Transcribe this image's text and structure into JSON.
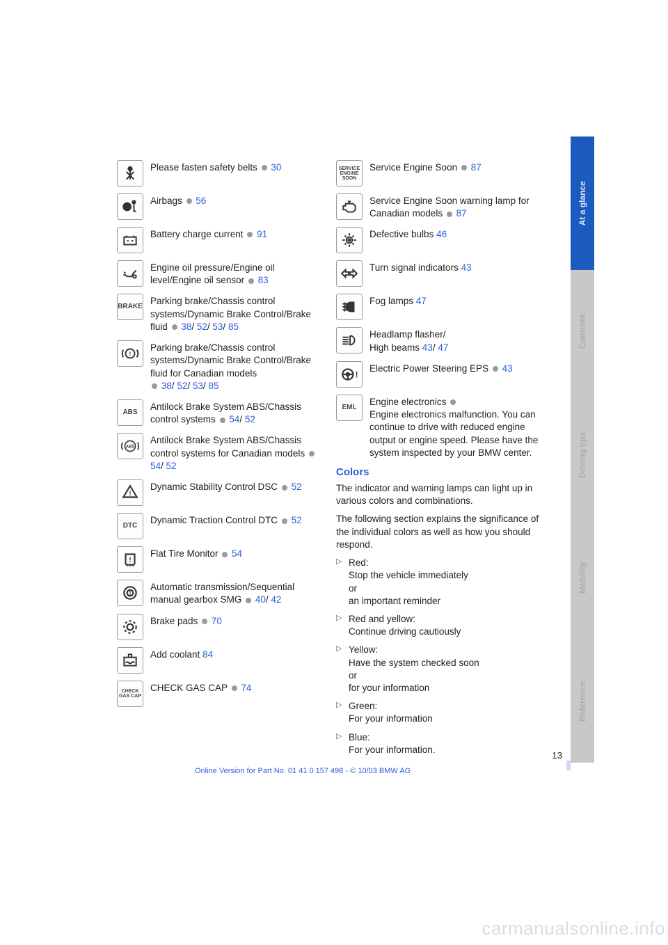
{
  "left_column": [
    {
      "icon": "seatbelt",
      "text": "Please fasten safety belts",
      "dot": true,
      "links": [
        "30"
      ]
    },
    {
      "icon": "airbag",
      "text": "Airbags",
      "dot": true,
      "links": [
        "56"
      ]
    },
    {
      "icon": "battery",
      "text": "Battery charge current",
      "dot": true,
      "links": [
        "91"
      ]
    },
    {
      "icon": "oil",
      "text": "Engine oil pressure/Engine oil level/Engine oil sensor",
      "dot": true,
      "links": [
        "83"
      ]
    },
    {
      "icon": "BRAKE",
      "icon_text": true,
      "text": "Parking brake/Chassis control systems/Dynamic Brake Control/Brake fluid",
      "dot": true,
      "links": [
        "38",
        "52",
        "53",
        "85"
      ]
    },
    {
      "icon": "brake-cad",
      "text": "Parking brake/Chassis control systems/Dynamic Brake Control/Brake fluid for Canadian models",
      "dot": true,
      "dot_before_links": true,
      "links": [
        "38",
        "52",
        "53",
        "85"
      ]
    },
    {
      "icon": "ABS",
      "icon_text": true,
      "text": "Antilock Brake System ABS/Chassis control systems",
      "dot": true,
      "links": [
        "54",
        "52"
      ]
    },
    {
      "icon": "abs-cad",
      "text": "Antilock Brake System ABS/Chassis control systems for Canadian models",
      "dot": true,
      "links": [
        "54",
        "52"
      ]
    },
    {
      "icon": "dsc",
      "text": "Dynamic Stability Control DSC",
      "dot": true,
      "links": [
        "52"
      ]
    },
    {
      "icon": "DTC",
      "icon_text": true,
      "text": "Dynamic Traction Control DTC",
      "dot": true,
      "links": [
        "52"
      ]
    },
    {
      "icon": "flat-tire",
      "text": "Flat Tire Monitor",
      "dot": true,
      "links": [
        "54"
      ]
    },
    {
      "icon": "gearbox",
      "text": "Automatic transmission/Sequential manual gearbox SMG",
      "dot": true,
      "links": [
        "40",
        "42"
      ]
    },
    {
      "icon": "brake-pads",
      "text": "Brake pads",
      "dot": true,
      "links": [
        "70"
      ]
    },
    {
      "icon": "coolant",
      "text": "Add coolant",
      "dot": false,
      "links": [
        "84"
      ]
    },
    {
      "icon": "CHECK GAS CAP",
      "icon_text": true,
      "icon_small": true,
      "text": "CHECK GAS CAP",
      "dot": true,
      "links": [
        "74"
      ]
    }
  ],
  "right_column": [
    {
      "icon": "SERVICE ENGINE SOON",
      "icon_text": true,
      "icon_small": true,
      "text": "Service Engine Soon",
      "dot": true,
      "links": [
        "87"
      ]
    },
    {
      "icon": "engine",
      "text": "Service Engine Soon warning lamp for Canadian models",
      "dot": true,
      "links": [
        "87"
      ]
    },
    {
      "icon": "bulb",
      "text": "Defective bulbs",
      "dot": false,
      "links": [
        "46"
      ]
    },
    {
      "icon": "turn",
      "text": "Turn signal indicators",
      "dot": false,
      "links": [
        "43"
      ]
    },
    {
      "icon": "fog",
      "text": "Fog lamps",
      "dot": false,
      "links": [
        "47"
      ]
    },
    {
      "icon": "highbeam",
      "text": "Headlamp flasher/\nHigh beams",
      "dot": false,
      "links": [
        "43",
        "47"
      ]
    },
    {
      "icon": "eps",
      "text": "Electric Power Steering EPS",
      "dot": true,
      "links": [
        "43"
      ]
    },
    {
      "icon": "EML",
      "icon_text": true,
      "text": "Engine electronics",
      "dot": true,
      "trailing": "Engine electronics malfunction. You can continue to drive with reduced engine output or engine speed. Please have the system inspected by your BMW center."
    }
  ],
  "colors_section": {
    "title": "Colors",
    "intro1": "The indicator and warning lamps can light up in various colors and combinations.",
    "intro2": "The following section explains the significance of the individual colors as well as how you should respond.",
    "bullets": [
      "Red:\nStop the vehicle immediately\nor\nan important reminder",
      "Red and yellow:\nContinue driving cautiously",
      "Yellow:\nHave the system checked soon\nor\nfor your information",
      "Green:\nFor your information",
      "Blue:\nFor your information."
    ]
  },
  "sidebar_tabs": [
    {
      "label": "At a glance",
      "active": true
    },
    {
      "label": "Controls",
      "active": false
    },
    {
      "label": "Driving tips",
      "active": false
    },
    {
      "label": "Mobility",
      "active": false
    },
    {
      "label": "Reference",
      "active": false
    }
  ],
  "page_number": "13",
  "footer": "Online Version for Part No. 01 41 0 157 498 - © 10/03 BMW AG",
  "watermark": "carmanualsonline.info",
  "icon_svgs": {
    "seatbelt": "<svg viewBox='0 0 24 24' stroke='#333' stroke-width='1.8' fill='none'><circle cx='12' cy='6' r='2.5' fill='#333'/><path d='M7 20 L17 10 M7 10 L17 20 M12 9 L12 20'/></svg>",
    "airbag": "<svg viewBox='0 0 24 24' stroke='#333' stroke-width='1.8' fill='none'><circle cx='8' cy='12' r='5' fill='#333'/><circle cx='17' cy='6' r='2' fill='#333'/><path d='M17 9 L17 18 L20 18' stroke='#333'/></svg>",
    "battery": "<svg viewBox='0 0 24 24' stroke='#333' stroke-width='1.8' fill='none'><rect x='4' y='8' width='16' height='10'/><path d='M7 6v2 M17 6v2 M8 13h2 M14 13h2 M15 12v2'/></svg>",
    "oil": "<svg viewBox='0 0 24 24' stroke='#333' stroke-width='1.8' fill='none'><path d='M3 14 L6 14 L8 16 L14 16 L16 12 L20 8 M4 10 L6 12 M18 14 a2 2 0 1 0 0.1 0'/></svg>",
    "brake-cad": "<svg viewBox='0 0 24 24' stroke='#333' stroke-width='1.8' fill='none'><circle cx='12' cy='12' r='6'/><path d='M3 7 A10 10 0 0 0 3 17 M21 7 A10 10 0 0 1 21 17'/><text x='12' y='15' font-size='8' text-anchor='middle' fill='#333' stroke='none'>!</text></svg>",
    "abs-cad": "<svg viewBox='0 0 24 24' stroke='#333' stroke-width='1.5' fill='none'><circle cx='12' cy='12' r='7'/><path d='M2 7 A11 11 0 0 0 2 17 M22 7 A11 11 0 0 1 22 17'/><text x='12' y='14.5' font-size='5.5' text-anchor='middle' fill='#333' stroke='none' font-weight='bold'>ABS</text></svg>",
    "dsc": "<svg viewBox='0 0 24 24' stroke='#333' stroke-width='2' fill='none'><path d='M12 3 L21 18 L3 18 Z'/><text x='12' y='16' font-size='9' text-anchor='middle' fill='#333' stroke='none'>!</text></svg>",
    "flat-tire": "<svg viewBox='0 0 24 24' stroke='#333' stroke-width='2' fill='none'><path d='M6 5 L18 5 L18 17 Q18 19 15 19 L9 19 Q6 19 6 17 Z M8 19 L8 21 M12 19 L12 21 M16 19 L16 21'/><text x='12' y='15' font-size='9' text-anchor='middle' fill='#333' stroke='none'>!</text></svg>",
    "gearbox": "<svg viewBox='0 0 24 24' stroke='#333' stroke-width='2' fill='none'><circle cx='12' cy='12' r='8'/><circle cx='12' cy='12' r='4'/><text x='12' y='15' font-size='9' text-anchor='middle' fill='#333' stroke='none'>!</text></svg>",
    "brake-pads": "<svg viewBox='0 0 24 24' stroke='#333' stroke-width='2' fill='none'><circle cx='12' cy='12' r='8' stroke-dasharray='3 3'/><circle cx='12' cy='12' r='4'/></svg>",
    "coolant": "<svg viewBox='0 0 24 24' stroke='#333' stroke-width='1.8' fill='none'><rect x='4' y='8' width='16' height='11'/><path d='M10 8 L10 4 L14 4 L14 8 M6 15 Q8 13 10 15 T14 15 T18 15'/></svg>",
    "engine": "<svg viewBox='0 0 24 24' stroke='#333' stroke-width='1.8' fill='none'><path d='M7 8 L17 8 L20 11 L20 16 L17 19 L10 19 L7 16 L4 16 L4 11 L7 11 Z M10 5 L14 5 M12 5 L12 8'/></svg>",
    "bulb": "<svg viewBox='0 0 24 24' stroke='#333' stroke-width='1.8' fill='none'><circle cx='12' cy='12' r='4'/><path d='M12 3v3 M12 18v3 M3 12h3 M18 12h3 M6 6l2 2 M16 16l2 2 M18 6l-2 2 M8 16l-2 2'/><circle cx='12' cy='12' r='1.5' fill='#333'/></svg>",
    "turn": "<svg viewBox='0 0 24 24' stroke='#333' stroke-width='1.8' fill='none'><path d='M2 12 L7 7 L7 10 L11 10 L11 14 L7 14 L7 17 Z M22 12 L17 7 L17 10 L13 10 L13 14 L17 14 L17 17 Z' fill='none'/></svg>",
    "fog": "<svg viewBox='0 0 24 24' stroke='#333' stroke-width='1.8' fill='none'><path d='M14 6 A6 6 0 0 0 14 18 L18 18 L18 6 Z' fill='#333'/><path d='M3 8 L10 8 M3 12 L10 12 M3 16 L10 16 M6 6 L6 18'/></svg>",
    "highbeam": "<svg viewBox='0 0 24 24' stroke='#333' stroke-width='1.8' fill='none'><path d='M13 6 A6 6 0 0 1 13 18 L13 6' fill='none'/><path d='M3 8 L11 8 M3 11 L11 11 M3 14 L11 14 M3 17 L11 17'/></svg>",
    "eps": "<svg viewBox='0 0 24 24' stroke='#333' stroke-width='2' fill='none'><circle cx='10' cy='12' r='7'/><path d='M3 12 L17 12 M10 12 L10 19'/><circle cx='10' cy='12' r='2' fill='#333'/><text x='20' y='16' font-size='11' fill='#333' stroke='none' font-weight='bold'>!</text></svg>"
  }
}
